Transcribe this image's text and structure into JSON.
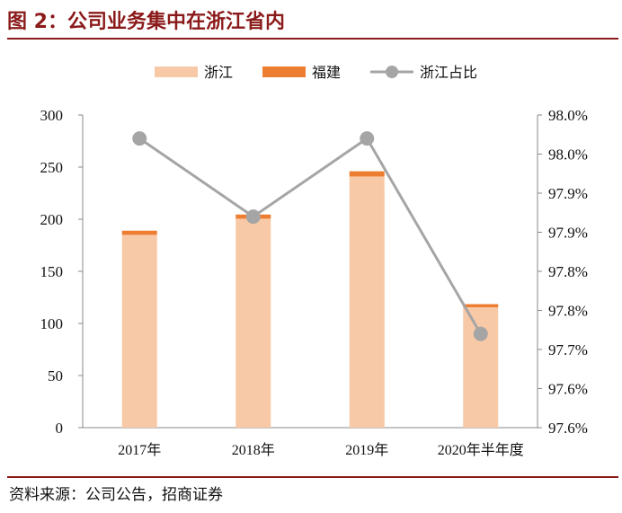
{
  "title": "图 2：公司业务集中在浙江省内",
  "source": "资料来源：公司公告，招商证券",
  "chart_data": {
    "type": "bar",
    "categories": [
      "2017年",
      "2018年",
      "2019年",
      "2020年半年度"
    ],
    "series": [
      {
        "name": "浙江",
        "type": "bar",
        "stack": "total",
        "axis": "left",
        "color": "#f8c9a6",
        "values": [
          185,
          200.5,
          241,
          115.5
        ]
      },
      {
        "name": "福建",
        "type": "bar",
        "stack": "total",
        "axis": "left",
        "color": "#ed7d31",
        "values": [
          4,
          4,
          5,
          3
        ]
      },
      {
        "name": "浙江占比",
        "type": "line",
        "axis": "right",
        "color": "#a5a5a5",
        "values": [
          97.92,
          97.82,
          97.92,
          97.67
        ]
      }
    ],
    "left_axis": {
      "ylim": [
        0,
        300
      ],
      "ticks": [
        0,
        50,
        100,
        150,
        200,
        250,
        300
      ]
    },
    "right_axis": {
      "ylim": [
        97.55,
        97.95
      ],
      "tick_labels": [
        "97.6%",
        "97.6%",
        "97.7%",
        "97.8%",
        "97.8%",
        "97.9%",
        "97.9%",
        "98.0%",
        "98.0%"
      ]
    },
    "legend": "top-center",
    "grid": false
  }
}
